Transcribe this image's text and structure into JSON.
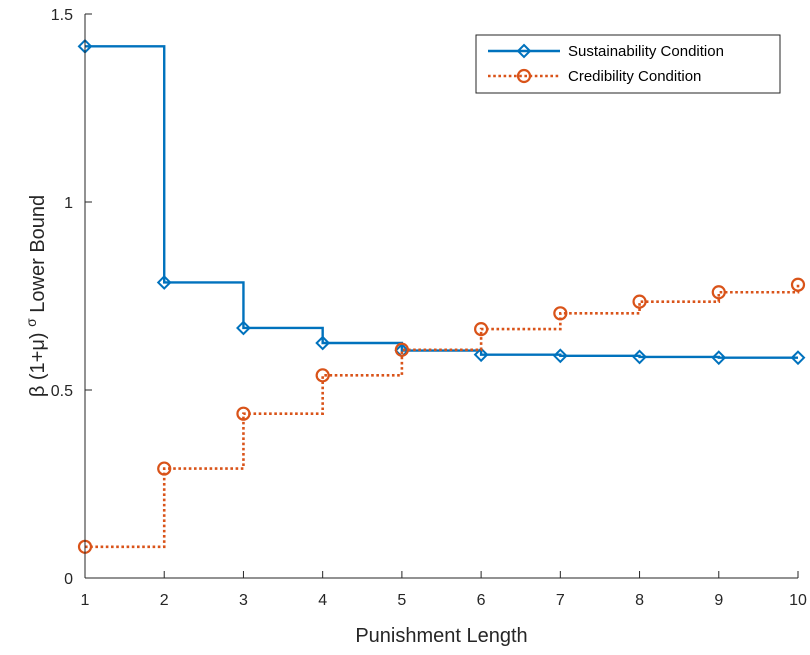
{
  "chart_data": {
    "type": "line",
    "step": "post",
    "title": "",
    "xlabel": "Punishment Length",
    "ylabel": {
      "prefix": "β (1+μ)",
      "sup": "σ",
      "suffix": " Lower Bound"
    },
    "xlim": [
      1,
      10
    ],
    "ylim": [
      0,
      1.5
    ],
    "xticks": [
      1,
      2,
      3,
      4,
      5,
      6,
      7,
      8,
      9,
      10
    ],
    "yticks": [
      0,
      0.5,
      1,
      1.5
    ],
    "ytick_labels": [
      "0",
      "0.5",
      "1",
      "1.5"
    ],
    "grid": false,
    "legend_position": "top-right",
    "x": [
      1,
      2,
      3,
      4,
      5,
      6,
      7,
      8,
      9,
      10
    ],
    "series": [
      {
        "name": "Sustainability Condition",
        "values": [
          1.414,
          0.786,
          0.665,
          0.625,
          0.605,
          0.594,
          0.591,
          0.588,
          0.586,
          0.586
        ],
        "color": "#0072BD",
        "line": "solid",
        "marker": "diamond"
      },
      {
        "name": "Credibility Condition",
        "values": [
          0.083,
          0.291,
          0.437,
          0.539,
          0.607,
          0.662,
          0.704,
          0.735,
          0.76,
          0.78
        ],
        "color": "#D95319",
        "line": "dotted",
        "marker": "circle"
      }
    ]
  }
}
